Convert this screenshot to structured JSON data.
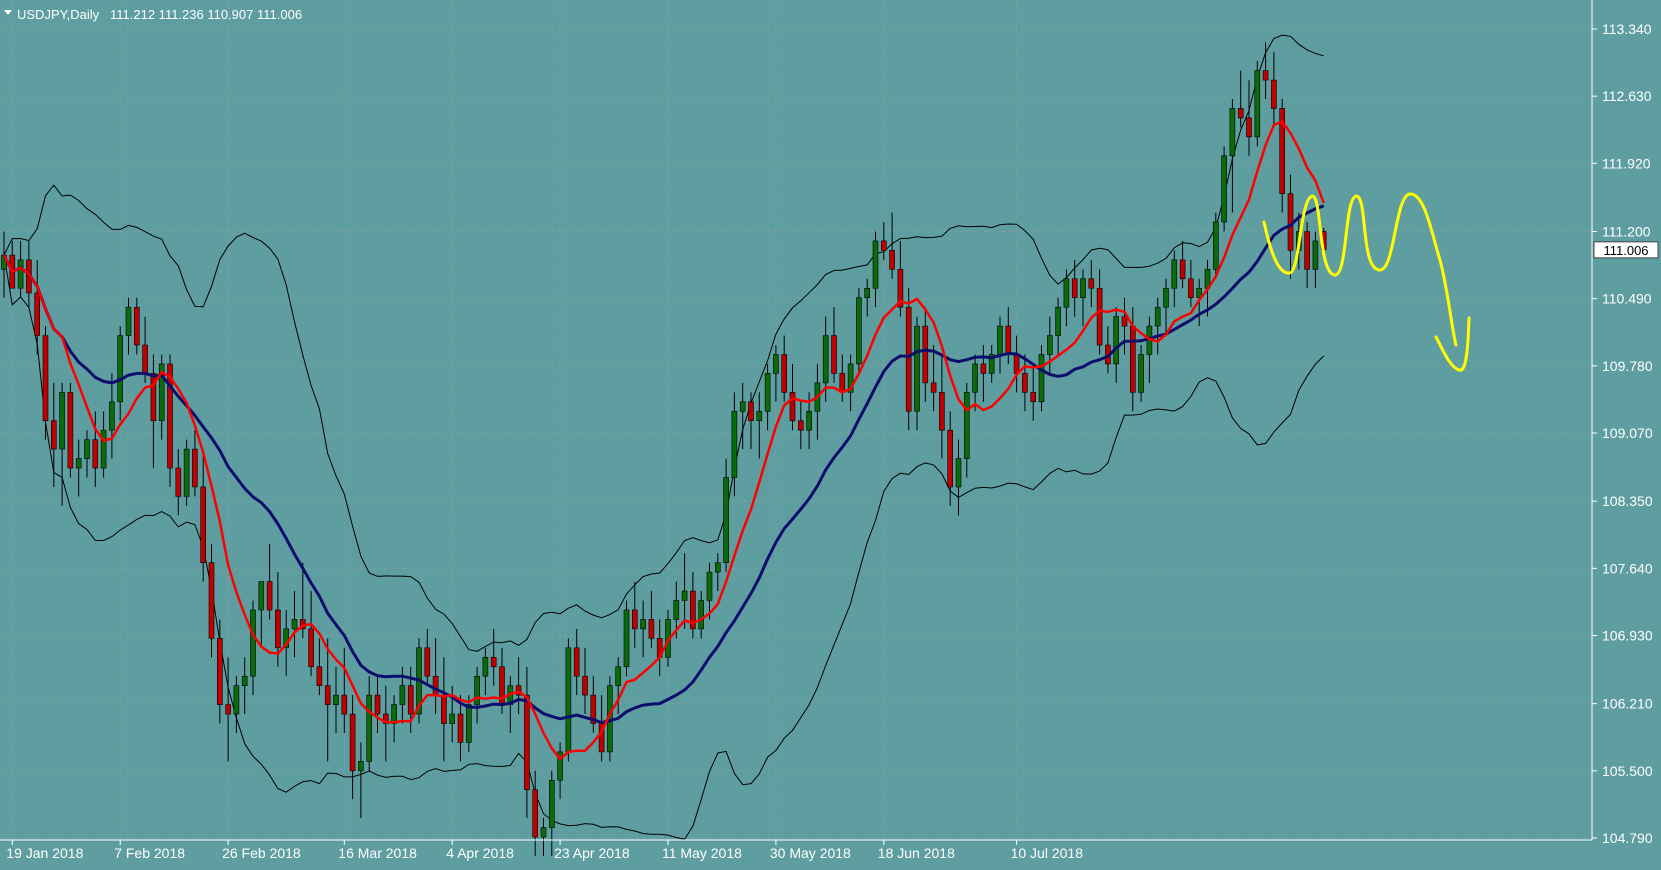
{
  "header": {
    "symbol": "USDJPY,Daily",
    "ohlc": "111.212 111.236 110.907 111.006"
  },
  "colors": {
    "background": "#5f9ea0",
    "grid": "#7b9fa3",
    "bull_candle": "#0a6b0a",
    "bear_candle": "#c00000",
    "candle_wick": "#000000",
    "ma_fast": "#ff0000",
    "ma_slow": "#0d0d6e",
    "bands": "#000000",
    "annotation": "#ffff00",
    "axis_text": "#ffffff",
    "price_tag_bg": "#ffffff",
    "price_tag_text": "#000000"
  },
  "chart_data": {
    "type": "candlestick",
    "title": "USDJPY,Daily",
    "ylim": [
      104.45,
      113.6
    ],
    "y_ticks": [
      113.34,
      112.63,
      111.92,
      111.2,
      110.49,
      109.78,
      109.07,
      108.35,
      107.64,
      106.93,
      106.21,
      105.5,
      104.79
    ],
    "x_ticks": [
      {
        "label": "19 Jan 2018",
        "bar": 1
      },
      {
        "label": "7 Feb 2018",
        "bar": 14
      },
      {
        "label": "26 Feb 2018",
        "bar": 27
      },
      {
        "label": "16 Mar 2018",
        "bar": 41
      },
      {
        "label": "4 Apr 2018",
        "bar": 54
      },
      {
        "label": "23 Apr 2018",
        "bar": 67
      },
      {
        "label": "11 May 2018",
        "bar": 80
      },
      {
        "label": "30 May 2018",
        "bar": 93
      },
      {
        "label": "18 Jun 2018",
        "bar": 106
      },
      {
        "label": "10 Jul 2018",
        "bar": 122
      }
    ],
    "grid": true,
    "current_price": 111.006,
    "candles": [
      [
        110.8,
        111.2,
        110.5,
        110.95
      ],
      [
        110.95,
        111.1,
        110.6,
        110.6
      ],
      [
        110.6,
        111.1,
        110.5,
        110.9
      ],
      [
        110.9,
        111.1,
        110.4,
        110.55
      ],
      [
        110.55,
        110.9,
        109.9,
        110.1
      ],
      [
        110.1,
        110.2,
        109.0,
        109.2
      ],
      [
        109.2,
        109.6,
        108.5,
        108.9
      ],
      [
        108.9,
        109.6,
        108.3,
        109.5
      ],
      [
        109.5,
        109.6,
        108.6,
        108.7
      ],
      [
        108.7,
        109.0,
        108.4,
        108.8
      ],
      [
        108.8,
        109.1,
        108.6,
        109.0
      ],
      [
        109.0,
        109.3,
        108.5,
        108.7
      ],
      [
        108.7,
        109.3,
        108.6,
        109.1
      ],
      [
        109.1,
        109.7,
        108.8,
        109.4
      ],
      [
        109.4,
        110.2,
        109.2,
        110.1
      ],
      [
        110.1,
        110.5,
        109.9,
        110.4
      ],
      [
        110.4,
        110.5,
        109.9,
        110.0
      ],
      [
        110.0,
        110.3,
        109.6,
        109.7
      ],
      [
        109.7,
        109.9,
        108.7,
        109.2
      ],
      [
        109.2,
        109.9,
        109.0,
        109.8
      ],
      [
        109.8,
        109.9,
        108.5,
        108.7
      ],
      [
        108.7,
        108.9,
        108.2,
        108.4
      ],
      [
        108.4,
        109.0,
        108.3,
        108.9
      ],
      [
        108.9,
        109.1,
        108.4,
        108.5
      ],
      [
        108.5,
        108.9,
        107.5,
        107.7
      ],
      [
        107.7,
        107.9,
        106.7,
        106.9
      ],
      [
        106.9,
        107.1,
        106.0,
        106.2
      ],
      [
        106.2,
        106.7,
        105.6,
        106.1
      ],
      [
        106.1,
        106.5,
        105.9,
        106.4
      ],
      [
        106.4,
        106.7,
        106.1,
        106.5
      ],
      [
        106.5,
        107.3,
        106.3,
        107.2
      ],
      [
        107.2,
        107.5,
        106.8,
        107.5
      ],
      [
        107.5,
        107.9,
        107.1,
        107.2
      ],
      [
        107.2,
        107.6,
        106.6,
        106.8
      ],
      [
        106.8,
        107.2,
        106.5,
        107.0
      ],
      [
        107.0,
        107.4,
        106.7,
        107.1
      ],
      [
        107.1,
        107.7,
        106.9,
        107.0
      ],
      [
        107.0,
        107.4,
        106.5,
        106.6
      ],
      [
        106.6,
        106.9,
        106.3,
        106.4
      ],
      [
        106.4,
        106.9,
        105.6,
        106.2
      ],
      [
        106.2,
        106.6,
        105.9,
        106.3
      ],
      [
        106.3,
        106.8,
        105.9,
        106.1
      ],
      [
        106.1,
        106.3,
        105.2,
        105.5
      ],
      [
        105.5,
        105.8,
        105.0,
        105.6
      ],
      [
        105.6,
        106.5,
        105.5,
        106.3
      ],
      [
        106.3,
        106.5,
        105.9,
        106.1
      ],
      [
        106.1,
        106.4,
        105.6,
        106.0
      ],
      [
        106.0,
        106.3,
        105.8,
        106.2
      ],
      [
        106.2,
        106.6,
        106.0,
        106.4
      ],
      [
        106.4,
        106.6,
        105.9,
        106.1
      ],
      [
        106.1,
        106.9,
        106.0,
        106.8
      ],
      [
        106.8,
        107.0,
        106.4,
        106.5
      ],
      [
        106.5,
        106.9,
        106.1,
        106.3
      ],
      [
        106.3,
        106.7,
        105.6,
        106.0
      ],
      [
        106.0,
        106.4,
        105.8,
        106.1
      ],
      [
        106.1,
        106.3,
        105.6,
        105.8
      ],
      [
        105.8,
        106.3,
        105.7,
        106.2
      ],
      [
        106.2,
        106.6,
        106.0,
        106.5
      ],
      [
        106.5,
        106.8,
        106.3,
        106.7
      ],
      [
        106.7,
        107.0,
        106.4,
        106.6
      ],
      [
        106.6,
        106.8,
        106.1,
        106.2
      ],
      [
        106.2,
        106.5,
        105.9,
        106.4
      ],
      [
        106.4,
        106.7,
        106.1,
        106.3
      ],
      [
        106.3,
        106.6,
        105.0,
        105.3
      ],
      [
        105.3,
        105.5,
        104.6,
        104.8
      ],
      [
        104.8,
        105.0,
        104.6,
        104.9
      ],
      [
        104.9,
        105.5,
        104.6,
        105.4
      ],
      [
        105.4,
        105.8,
        105.2,
        105.7
      ],
      [
        105.7,
        106.9,
        105.6,
        106.8
      ],
      [
        106.8,
        107.0,
        106.3,
        106.5
      ],
      [
        106.5,
        106.8,
        106.1,
        106.3
      ],
      [
        106.3,
        106.5,
        105.9,
        106.0
      ],
      [
        106.0,
        106.3,
        105.6,
        105.7
      ],
      [
        105.7,
        106.5,
        105.6,
        106.4
      ],
      [
        106.4,
        106.7,
        106.1,
        106.6
      ],
      [
        106.6,
        107.3,
        106.5,
        107.2
      ],
      [
        107.2,
        107.5,
        106.8,
        107.0
      ],
      [
        107.0,
        107.3,
        106.7,
        107.1
      ],
      [
        107.1,
        107.4,
        106.8,
        106.9
      ],
      [
        106.9,
        107.1,
        106.5,
        106.7
      ],
      [
        106.7,
        107.2,
        106.6,
        107.1
      ],
      [
        107.1,
        107.5,
        106.9,
        107.3
      ],
      [
        107.3,
        107.8,
        107.0,
        107.4
      ],
      [
        107.4,
        107.6,
        106.9,
        107.0
      ],
      [
        107.0,
        107.4,
        106.9,
        107.3
      ],
      [
        107.3,
        107.7,
        107.1,
        107.6
      ],
      [
        107.6,
        107.8,
        107.4,
        107.7
      ],
      [
        107.7,
        108.8,
        107.6,
        108.6
      ],
      [
        108.6,
        109.5,
        108.4,
        109.3
      ],
      [
        109.3,
        109.6,
        108.9,
        109.4
      ],
      [
        109.4,
        109.5,
        108.9,
        109.2
      ],
      [
        109.2,
        109.5,
        108.8,
        109.3
      ],
      [
        109.3,
        109.8,
        109.1,
        109.7
      ],
      [
        109.7,
        110.0,
        109.4,
        109.9
      ],
      [
        109.9,
        110.1,
        109.4,
        109.5
      ],
      [
        109.5,
        109.8,
        109.1,
        109.2
      ],
      [
        109.2,
        109.4,
        108.9,
        109.1
      ],
      [
        109.1,
        109.5,
        108.9,
        109.3
      ],
      [
        109.3,
        109.8,
        109.0,
        109.6
      ],
      [
        109.6,
        110.3,
        109.4,
        110.1
      ],
      [
        110.1,
        110.4,
        109.6,
        109.7
      ],
      [
        109.7,
        109.9,
        109.4,
        109.5
      ],
      [
        109.5,
        109.9,
        109.3,
        109.8
      ],
      [
        109.8,
        110.6,
        109.7,
        110.5
      ],
      [
        110.5,
        110.7,
        110.3,
        110.6
      ],
      [
        110.6,
        111.2,
        110.4,
        111.1
      ],
      [
        111.1,
        111.3,
        110.9,
        111.0
      ],
      [
        111.0,
        111.4,
        110.7,
        110.8
      ],
      [
        110.8,
        111.1,
        110.3,
        110.4
      ],
      [
        110.4,
        110.6,
        109.1,
        109.3
      ],
      [
        109.3,
        110.3,
        109.1,
        110.2
      ],
      [
        110.2,
        110.4,
        109.4,
        109.6
      ],
      [
        109.6,
        110.0,
        109.3,
        109.5
      ],
      [
        109.5,
        109.9,
        108.8,
        109.1
      ],
      [
        109.1,
        109.3,
        108.3,
        108.5
      ],
      [
        108.5,
        109.0,
        108.2,
        108.8
      ],
      [
        108.8,
        109.6,
        108.6,
        109.5
      ],
      [
        109.5,
        109.9,
        109.3,
        109.8
      ],
      [
        109.8,
        110.0,
        109.4,
        109.7
      ],
      [
        109.7,
        110.0,
        109.6,
        109.9
      ],
      [
        109.9,
        110.3,
        109.7,
        110.2
      ],
      [
        110.2,
        110.4,
        109.8,
        109.9
      ],
      [
        109.9,
        110.1,
        109.5,
        109.7
      ],
      [
        109.7,
        109.9,
        109.3,
        109.5
      ],
      [
        109.5,
        109.8,
        109.2,
        109.4
      ],
      [
        109.4,
        110.0,
        109.3,
        109.9
      ],
      [
        109.9,
        110.3,
        109.7,
        110.1
      ],
      [
        110.1,
        110.5,
        109.9,
        110.4
      ],
      [
        110.4,
        110.8,
        110.2,
        110.7
      ],
      [
        110.7,
        110.9,
        110.3,
        110.5
      ],
      [
        110.5,
        110.8,
        110.2,
        110.7
      ],
      [
        110.7,
        110.9,
        110.4,
        110.6
      ],
      [
        110.6,
        110.8,
        109.9,
        110.0
      ],
      [
        110.0,
        110.2,
        109.7,
        109.8
      ],
      [
        109.8,
        110.4,
        109.6,
        110.3
      ],
      [
        110.3,
        110.5,
        109.9,
        110.2
      ],
      [
        110.2,
        110.4,
        109.3,
        109.5
      ],
      [
        109.5,
        110.0,
        109.4,
        109.9
      ],
      [
        109.9,
        110.3,
        109.6,
        110.2
      ],
      [
        110.2,
        110.5,
        109.9,
        110.4
      ],
      [
        110.4,
        110.7,
        110.1,
        110.6
      ],
      [
        110.6,
        111.0,
        110.4,
        110.9
      ],
      [
        110.9,
        111.1,
        110.6,
        110.7
      ],
      [
        110.7,
        110.9,
        110.4,
        110.5
      ],
      [
        110.5,
        110.7,
        110.2,
        110.6
      ],
      [
        110.6,
        110.9,
        110.3,
        110.8
      ],
      [
        110.8,
        111.4,
        110.7,
        111.3
      ],
      [
        111.3,
        112.1,
        111.2,
        112.0
      ],
      [
        112.0,
        112.6,
        111.4,
        112.5
      ],
      [
        112.5,
        112.9,
        112.3,
        112.4
      ],
      [
        112.4,
        112.8,
        112.0,
        112.2
      ],
      [
        112.2,
        113.0,
        112.1,
        112.9
      ],
      [
        112.9,
        113.2,
        112.6,
        112.8
      ],
      [
        112.8,
        113.1,
        112.3,
        112.5
      ],
      [
        112.5,
        112.6,
        111.4,
        111.6
      ],
      [
        111.6,
        111.8,
        110.7,
        111.0
      ],
      [
        111.0,
        111.4,
        110.8,
        111.2
      ],
      [
        111.2,
        111.3,
        110.6,
        110.8
      ],
      [
        110.8,
        111.2,
        110.6,
        111.1
      ],
      [
        111.2,
        111.236,
        110.907,
        111.006
      ]
    ],
    "annotation": "yellow hand-drawn forecast squiggle: oscillation then decline"
  }
}
